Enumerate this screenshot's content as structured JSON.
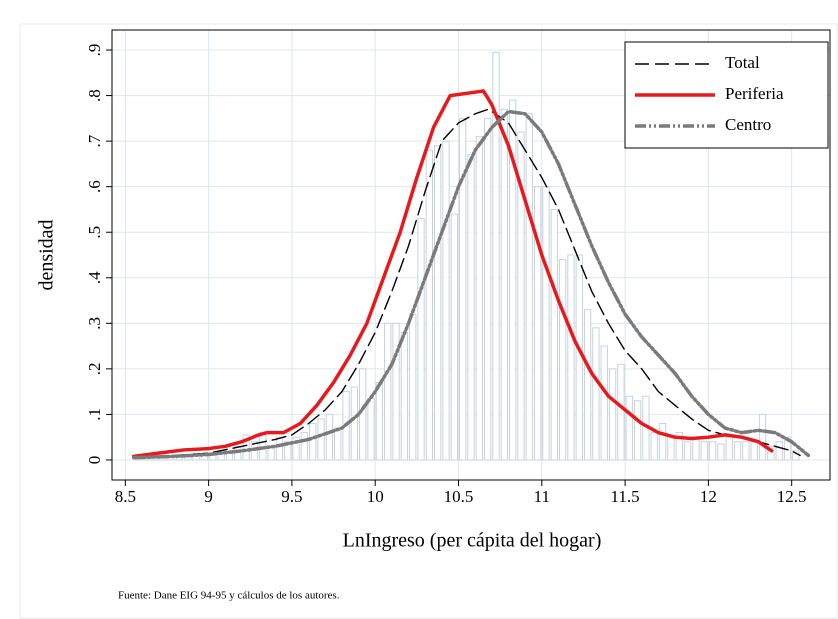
{
  "chart_data": {
    "type": "histogram",
    "xlabel": "LnIngreso (per cápita del hogar)",
    "ylabel": "densidad",
    "note": "Fuente: Dane EIG 94-95 y cálculos de los autores.",
    "xlim": [
      8.42,
      12.73
    ],
    "ylim": [
      -0.044,
      0.944
    ],
    "xticks": [
      8.5,
      9,
      9.5,
      10,
      10.5,
      11,
      11.5,
      12,
      12.5
    ],
    "yticks": [
      0,
      {
        "value": 0.1,
        "label": ".1"
      },
      {
        "value": 0.2,
        "label": ".2"
      },
      {
        "value": 0.3,
        "label": ".3"
      },
      {
        "value": 0.4,
        "label": ".4"
      },
      {
        "value": 0.5,
        "label": ".5"
      },
      {
        "value": 0.6,
        "label": ".6"
      },
      {
        "value": 0.7,
        "label": ".7"
      },
      {
        "value": 0.8,
        "label": ".8"
      },
      {
        "value": 0.9,
        "label": ".9"
      }
    ],
    "grid": true,
    "legend": "upper right",
    "color": "#c5d2df",
    "bins": [
      8.55,
      8.6,
      8.65,
      8.7,
      8.75,
      8.8,
      8.85,
      8.9,
      8.95,
      9.0,
      9.05,
      9.1,
      9.15,
      9.2,
      9.25,
      9.3,
      9.35,
      9.4,
      9.45,
      9.5,
      9.55,
      9.6,
      9.65,
      9.7,
      9.75,
      9.8,
      9.85,
      9.9,
      9.95,
      10.0,
      10.05,
      10.1,
      10.15,
      10.2,
      10.25,
      10.3,
      10.35,
      10.4,
      10.45,
      10.5,
      10.55,
      10.6,
      10.65,
      10.7,
      10.75,
      10.8,
      10.85,
      10.9,
      10.95,
      11.0,
      11.05,
      11.1,
      11.15,
      11.2,
      11.25,
      11.3,
      11.35,
      11.4,
      11.45,
      11.5,
      11.55,
      11.6,
      11.65,
      11.7,
      11.75,
      11.8,
      11.85,
      11.9,
      11.95,
      12.0,
      12.05,
      12.1,
      12.15,
      12.2,
      12.25,
      12.3,
      12.35,
      12.4,
      12.45,
      12.5,
      12.55
    ],
    "values": [
      0.005,
      0.005,
      0.01,
      0.005,
      0.01,
      0.01,
      0.01,
      0.015,
      0.01,
      0.015,
      0.02,
      0.02,
      0.03,
      0.055,
      0.04,
      0.06,
      0.03,
      0.05,
      0.04,
      0.05,
      0.06,
      0.08,
      0.09,
      0.1,
      0.07,
      0.15,
      0.16,
      0.2,
      0.135,
      0.17,
      0.3,
      0.3,
      0.28,
      0.32,
      0.53,
      0.68,
      0.69,
      0.7,
      0.54,
      0.75,
      0.67,
      0.71,
      0.75,
      0.895,
      0.77,
      0.79,
      0.72,
      0.76,
      0.6,
      0.6,
      0.55,
      0.44,
      0.45,
      0.45,
      0.33,
      0.29,
      0.25,
      0.2,
      0.21,
      0.14,
      0.13,
      0.14,
      0.06,
      0.08,
      0.05,
      0.06,
      0.04,
      0.05,
      0.04,
      0.04,
      0.035,
      0.05,
      0.04,
      0.04,
      0.04,
      0.1,
      0.03,
      0.04,
      0.05,
      0.02
    ],
    "series": [
      {
        "name": "Total",
        "color": "#000000",
        "x": [
          8.55,
          8.8,
          9.0,
          9.2,
          9.4,
          9.5,
          9.6,
          9.7,
          9.8,
          9.9,
          10.0,
          10.1,
          10.2,
          10.3,
          10.4,
          10.5,
          10.6,
          10.68,
          10.8,
          10.9,
          11.0,
          11.1,
          11.2,
          11.3,
          11.4,
          11.5,
          11.6,
          11.7,
          11.8,
          11.9,
          12.0,
          12.1,
          12.2,
          12.3,
          12.4,
          12.5,
          12.55
        ],
        "values": [
          0.005,
          0.01,
          0.015,
          0.03,
          0.045,
          0.055,
          0.08,
          0.11,
          0.15,
          0.21,
          0.28,
          0.37,
          0.47,
          0.59,
          0.7,
          0.74,
          0.76,
          0.77,
          0.74,
          0.68,
          0.62,
          0.55,
          0.46,
          0.37,
          0.3,
          0.24,
          0.2,
          0.15,
          0.12,
          0.09,
          0.065,
          0.055,
          0.05,
          0.04,
          0.03,
          0.02,
          0.01
        ]
      },
      {
        "name": "Periferia",
        "color": "#e8191d",
        "x": [
          8.55,
          8.7,
          8.85,
          9.0,
          9.1,
          9.2,
          9.3,
          9.35,
          9.45,
          9.55,
          9.65,
          9.75,
          9.85,
          9.95,
          10.05,
          10.15,
          10.25,
          10.35,
          10.45,
          10.55,
          10.65,
          10.7,
          10.8,
          10.9,
          11.0,
          11.1,
          11.2,
          11.3,
          11.4,
          11.5,
          11.6,
          11.7,
          11.8,
          11.9,
          12.0,
          12.1,
          12.2,
          12.3,
          12.38
        ],
        "values": [
          0.008,
          0.015,
          0.022,
          0.025,
          0.03,
          0.04,
          0.055,
          0.06,
          0.06,
          0.08,
          0.12,
          0.17,
          0.23,
          0.3,
          0.4,
          0.5,
          0.62,
          0.73,
          0.8,
          0.805,
          0.81,
          0.78,
          0.69,
          0.57,
          0.45,
          0.35,
          0.26,
          0.19,
          0.14,
          0.11,
          0.08,
          0.06,
          0.05,
          0.047,
          0.05,
          0.055,
          0.05,
          0.04,
          0.02
        ]
      },
      {
        "name": "Centro",
        "color": "#7a7a7a",
        "x": [
          8.55,
          8.8,
          9.0,
          9.2,
          9.4,
          9.6,
          9.8,
          9.9,
          10.0,
          10.1,
          10.2,
          10.3,
          10.4,
          10.5,
          10.6,
          10.7,
          10.8,
          10.9,
          11.0,
          11.1,
          11.2,
          11.3,
          11.4,
          11.5,
          11.6,
          11.7,
          11.8,
          11.9,
          12.0,
          12.1,
          12.2,
          12.3,
          12.4,
          12.5,
          12.6
        ],
        "values": [
          0.005,
          0.008,
          0.012,
          0.02,
          0.03,
          0.045,
          0.07,
          0.1,
          0.15,
          0.21,
          0.3,
          0.4,
          0.5,
          0.6,
          0.68,
          0.73,
          0.765,
          0.76,
          0.72,
          0.65,
          0.56,
          0.47,
          0.39,
          0.32,
          0.27,
          0.23,
          0.19,
          0.14,
          0.1,
          0.07,
          0.06,
          0.065,
          0.06,
          0.04,
          0.01
        ]
      }
    ]
  }
}
